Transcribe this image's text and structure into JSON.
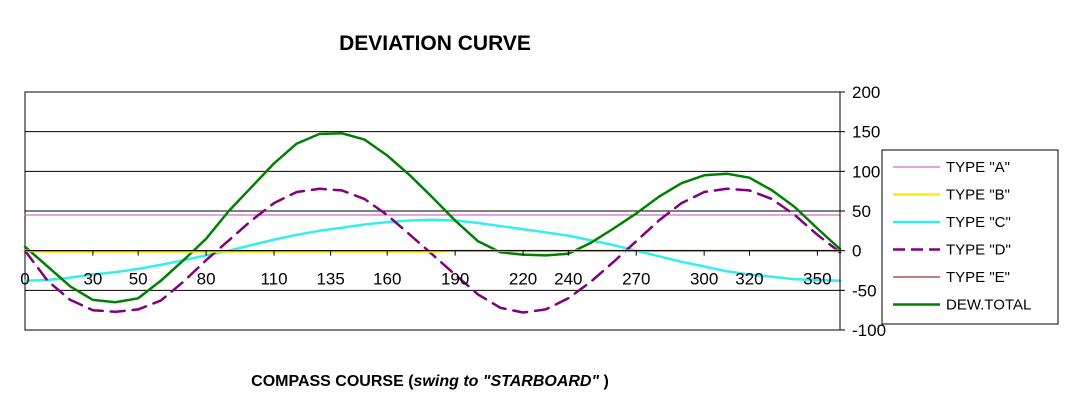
{
  "chart_data": {
    "type": "line",
    "title": "DEVIATION CURVE",
    "xlabel_prefix": "COMPASS COURSE  (",
    "xlabel_italic": "swing to \"STARBOARD\"",
    "xlabel_suffix": " )",
    "ylabel": "",
    "xlim": [
      0,
      360
    ],
    "ylim": [
      -100,
      200
    ],
    "x_ticks": [
      0,
      30,
      50,
      80,
      110,
      135,
      160,
      190,
      220,
      240,
      270,
      300,
      320,
      350
    ],
    "x_tick_labels": [
      "0",
      "30",
      "50",
      "80",
      "110",
      "135",
      "160",
      "190",
      "220",
      "240",
      "270",
      "300",
      "320",
      "350"
    ],
    "y_ticks": [
      -100,
      -50,
      0,
      50,
      100,
      150,
      200
    ],
    "y_tick_labels": [
      "-100",
      "-50",
      "0",
      "50",
      "100",
      "150",
      "200"
    ],
    "grid": true,
    "legend_position": "right",
    "x": [
      0,
      10,
      20,
      30,
      40,
      50,
      60,
      70,
      80,
      90,
      100,
      110,
      120,
      130,
      140,
      150,
      160,
      170,
      180,
      190,
      200,
      210,
      220,
      230,
      240,
      250,
      260,
      270,
      280,
      290,
      300,
      310,
      320,
      330,
      340,
      350,
      360
    ],
    "series": [
      {
        "name": "TYPE \"A\"",
        "color": "#cc44cc",
        "dash": "solid",
        "width": 1,
        "values": [
          45,
          45,
          45,
          45,
          45,
          45,
          45,
          45,
          45,
          45,
          45,
          45,
          45,
          45,
          45,
          45,
          45,
          45,
          45,
          45,
          45,
          45,
          45,
          45,
          45,
          45,
          45,
          45,
          45,
          45,
          45,
          45,
          45,
          45,
          45,
          45,
          45
        ]
      },
      {
        "name": "TYPE \"B\"",
        "color": "#ffee00",
        "dash": "solid",
        "width": 2.5,
        "values": [
          0,
          -1,
          -1,
          -1,
          -1,
          -1,
          -1,
          -1,
          -1,
          -1,
          -1,
          -1,
          -1,
          -1,
          -1,
          -1,
          -1,
          -1,
          -1,
          0,
          0,
          0,
          0,
          0,
          0,
          0,
          0,
          0,
          0,
          0,
          0,
          0,
          0,
          0,
          0,
          0,
          0
        ]
      },
      {
        "name": "TYPE \"C\"",
        "color": "#33eeee",
        "dash": "solid",
        "width": 2.5,
        "values": [
          -38,
          -37,
          -34,
          -30,
          -27,
          -23,
          -18,
          -12,
          -6,
          0,
          7,
          14,
          20,
          25,
          29,
          33,
          36,
          38,
          39,
          38,
          35,
          31,
          27,
          23,
          19,
          13,
          7,
          0,
          -7,
          -14,
          -20,
          -26,
          -30,
          -33,
          -36,
          -37,
          -38
        ]
      },
      {
        "name": "TYPE \"D\"",
        "color": "#800080",
        "dash": "dashed",
        "width": 2.5,
        "values": [
          0,
          -38,
          -62,
          -75,
          -77,
          -74,
          -63,
          -39,
          -12,
          13,
          38,
          60,
          74,
          78,
          76,
          65,
          45,
          20,
          -5,
          -30,
          -55,
          -72,
          -78,
          -74,
          -60,
          -39,
          -14,
          12,
          38,
          60,
          74,
          78,
          76,
          65,
          45,
          20,
          -2
        ]
      },
      {
        "name": "TYPE \"E\"",
        "color": "#800000",
        "dash": "solid",
        "width": 1,
        "values": [
          0,
          0,
          0,
          0,
          0,
          0,
          0,
          0,
          0,
          0,
          0,
          0,
          0,
          0,
          0,
          0,
          0,
          0,
          0,
          0,
          0,
          0,
          0,
          0,
          0,
          0,
          0,
          0,
          0,
          0,
          0,
          0,
          0,
          0,
          0,
          0,
          0
        ]
      },
      {
        "name": "DEW.TOTAL",
        "color": "#008000",
        "dash": "solid",
        "width": 2.5,
        "values": [
          5,
          -20,
          -45,
          -62,
          -65,
          -60,
          -38,
          -12,
          15,
          50,
          80,
          110,
          135,
          147,
          148,
          140,
          120,
          95,
          67,
          38,
          12,
          -2,
          -5,
          -6,
          -4,
          10,
          28,
          47,
          68,
          85,
          95,
          97,
          92,
          76,
          55,
          28,
          2
        ]
      }
    ]
  }
}
